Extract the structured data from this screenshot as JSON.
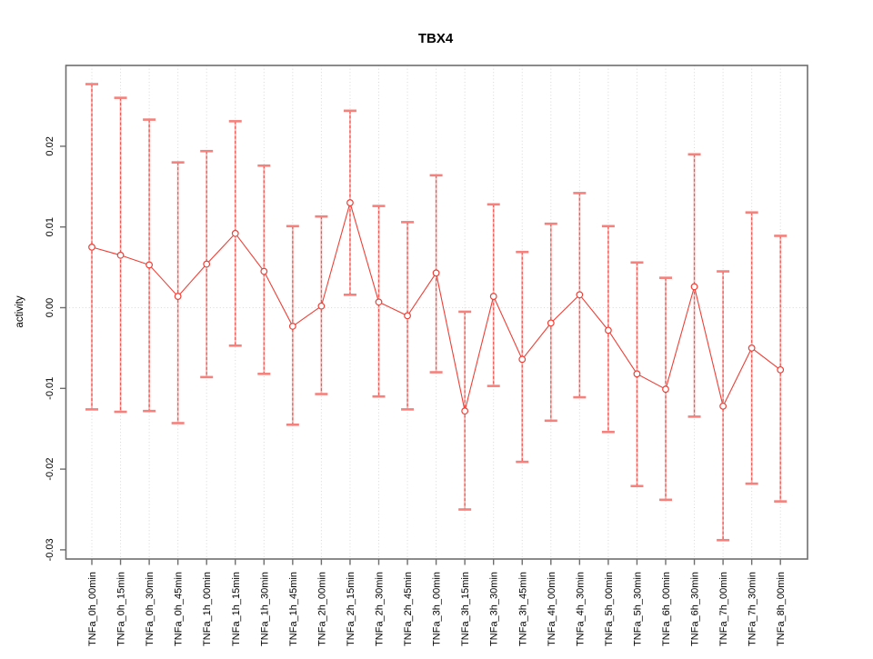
{
  "window": {
    "background": "#ffffff"
  },
  "chart_data": {
    "type": "line",
    "title": "TBX4",
    "xlabel": "",
    "ylabel": "activity",
    "legend": "none",
    "grid": "vertical dotted gridline per category; dotted horizontal line at y=0",
    "marker": "open-circle",
    "error_bars": true,
    "ylim": [
      -0.031,
      0.03
    ],
    "yticks": [
      0.02,
      0.01,
      0.0,
      -0.01,
      -0.02,
      -0.03
    ],
    "ytick_labels": [
      "0.02",
      "0.01",
      "0.00",
      "-0.01",
      "-0.02",
      "-0.03"
    ],
    "categories": [
      "TNFa_0h_00min",
      "TNFa_0h_15min",
      "TNFa_0h_30min",
      "TNFa_0h_45min",
      "TNFa_1h_00min",
      "TNFa_1h_15min",
      "TNFa_1h_30min",
      "TNFa_1h_45min",
      "TNFa_2h_00min",
      "TNFa_2h_15min",
      "TNFa_2h_30min",
      "TNFa_2h_45min",
      "TNFa_3h_00min",
      "TNFa_3h_15min",
      "TNFa_3h_30min",
      "TNFa_3h_45min",
      "TNFa_4h_00min",
      "TNFa_4h_30min",
      "TNFa_5h_00min",
      "TNFa_5h_30min",
      "TNFa_6h_00min",
      "TNFa_6h_30min",
      "TNFa_7h_00min",
      "TNFa_7h_30min",
      "TNFa_8h_00min"
    ],
    "series": [
      {
        "name": "activity",
        "values": [
          0.0075,
          0.0065,
          0.0053,
          0.0014,
          0.0054,
          0.0092,
          0.0045,
          -0.0023,
          0.0002,
          0.013,
          0.0007,
          -0.001,
          0.0043,
          -0.0128,
          0.0014,
          -0.0064,
          -0.0019,
          0.0016,
          -0.0028,
          -0.0082,
          -0.0101,
          0.0026,
          -0.0122,
          -0.005,
          -0.0077
        ],
        "ci_high": [
          0.0277,
          0.026,
          0.0233,
          0.018,
          0.0194,
          0.0231,
          0.0176,
          0.0101,
          0.0113,
          0.0244,
          0.0126,
          0.0106,
          0.0164,
          -0.0005,
          0.0128,
          0.0069,
          0.0104,
          0.0142,
          0.0101,
          0.0056,
          0.0037,
          0.019,
          0.0045,
          0.0118,
          0.0089
        ],
        "ci_low": [
          -0.0126,
          -0.0129,
          -0.0128,
          -0.0143,
          -0.0086,
          -0.0047,
          -0.0082,
          -0.0145,
          -0.0107,
          0.0016,
          -0.011,
          -0.0126,
          -0.008,
          -0.025,
          -0.0097,
          -0.0191,
          -0.014,
          -0.0111,
          -0.0154,
          -0.0221,
          -0.0238,
          -0.0135,
          -0.0288,
          -0.0218,
          -0.024
        ]
      }
    ],
    "colors": {
      "point": "#ee4037",
      "line": "#ee4037",
      "error_bar": "#f25550",
      "error_cap": "#f5817c",
      "error_halo": "#f9b3b0",
      "grid": "#d8d8d8",
      "box": "#6e6e6e",
      "text": "#000000"
    }
  }
}
